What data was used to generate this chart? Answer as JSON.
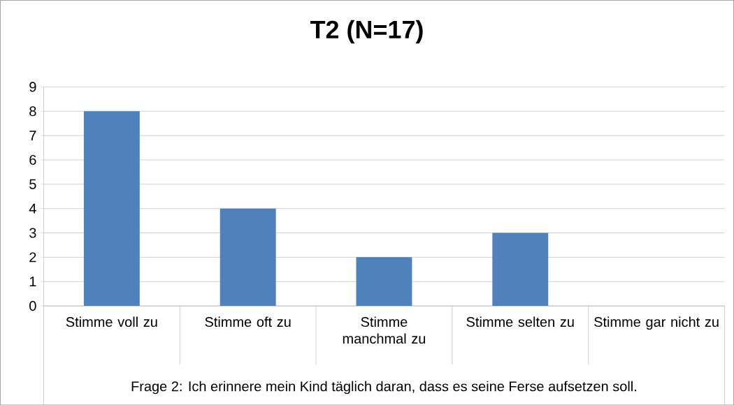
{
  "chart_data": {
    "type": "bar",
    "title": "T2 (N=17)",
    "categories": [
      "Stimme voll zu",
      "Stimme oft zu",
      "Stimme manchmal zu",
      "Stimme selten zu",
      "Stimme gar nicht zu"
    ],
    "values": [
      8,
      4,
      2,
      3,
      0
    ],
    "color": "#4f81bd",
    "xlabel": "Frage 2: Ich erinnere mein Kind täglich daran, dass es seine Ferse aufsetzen soll.",
    "ylim": [
      0,
      9
    ],
    "yticks": [
      0,
      1,
      2,
      3,
      4,
      5,
      6,
      7,
      8,
      9
    ],
    "grid": "y"
  }
}
